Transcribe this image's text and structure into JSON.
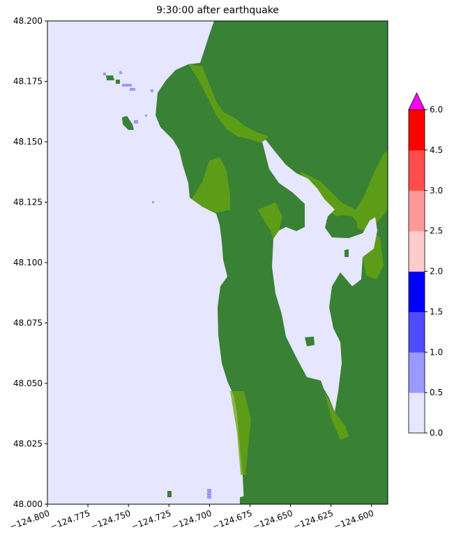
{
  "chart_data": {
    "type": "heatmap",
    "title": "9:30:00 after earthquake",
    "xlim": [
      -124.8,
      -124.59
    ],
    "ylim": [
      48.0,
      48.2
    ],
    "xticks": [
      -124.8,
      -124.775,
      -124.75,
      -124.725,
      -124.7,
      -124.675,
      -124.65,
      -124.625,
      -124.6
    ],
    "xtick_labels": [
      "−124.800",
      "−124.775",
      "−124.750",
      "−124.725",
      "−124.700",
      "−124.675",
      "−124.650",
      "−124.625",
      "−124.600"
    ],
    "yticks": [
      48.0,
      48.025,
      48.05,
      48.075,
      48.1,
      48.125,
      48.15,
      48.175,
      48.2
    ],
    "ytick_labels": [
      "48.000",
      "48.025",
      "48.050",
      "48.075",
      "48.100",
      "48.125",
      "48.150",
      "48.175",
      "48.200"
    ],
    "grid": false,
    "colorbar": {
      "levels": [
        0.0,
        0.5,
        1.0,
        1.5,
        2.0,
        2.5,
        3.0,
        4.5,
        6.0
      ],
      "tick_labels": [
        "0.0",
        "0.5",
        "1.0",
        "1.5",
        "2.0",
        "2.5",
        "3.0",
        "4.5",
        "6.0"
      ],
      "colors": [
        "#e6e6ff",
        "#9999ff",
        "#4d4dff",
        "#0000ff",
        "#ffcccc",
        "#ff9999",
        "#ff4d4d",
        "#ff0000"
      ],
      "extend_max_color": "#ff00ff",
      "placement": "right"
    },
    "colors": {
      "water": "#e6e6ff",
      "land": "#388135",
      "shallow_land": "#6aa60e"
    }
  }
}
